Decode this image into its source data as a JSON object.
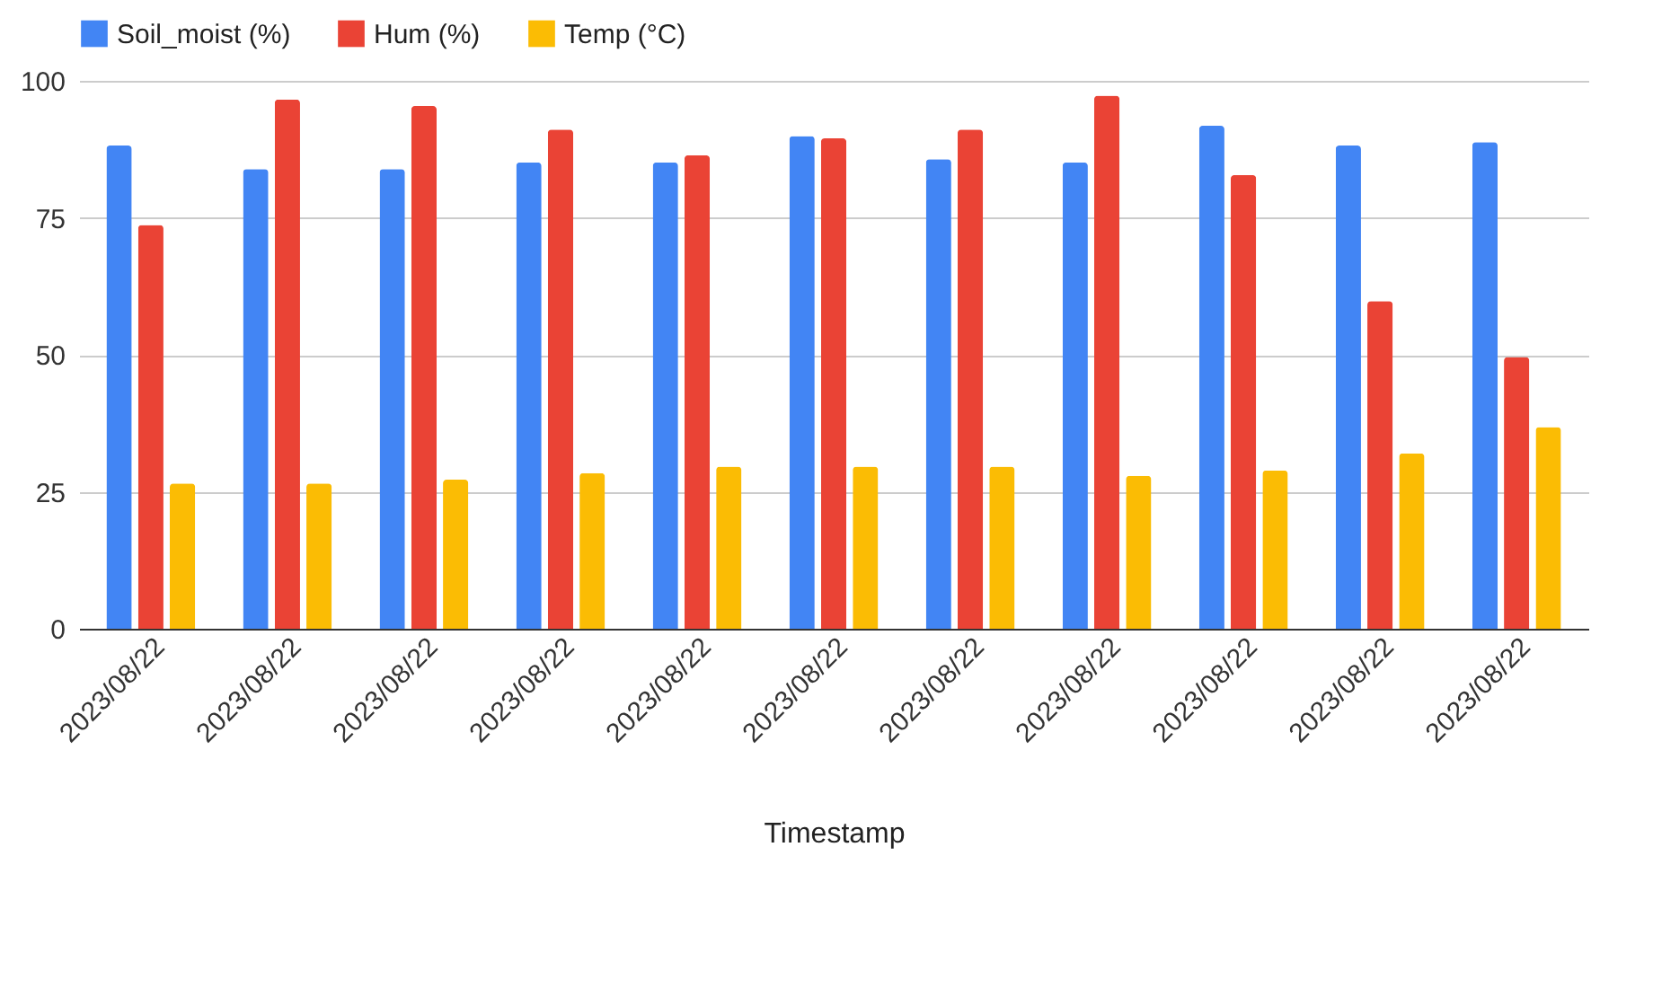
{
  "chart_data": {
    "type": "bar",
    "xlabel": "Timestamp",
    "categories": [
      "2023/08/22",
      "2023/08/22",
      "2023/08/22",
      "2023/08/22",
      "2023/08/22",
      "2023/08/22",
      "2023/08/22",
      "2023/08/22",
      "2023/08/22",
      "2023/08/22",
      "2023/08/22"
    ],
    "series": [
      {
        "name": "Soil_moist (%)",
        "color": "#4285f4",
        "values": [
          88.2,
          83.9,
          83.9,
          85.1,
          85.1,
          89.9,
          85.7,
          85.1,
          91.8,
          88.2,
          88.8
        ]
      },
      {
        "name": "Hum (%)",
        "color": "#ea4335",
        "values": [
          73.7,
          96.6,
          95.4,
          91.1,
          86.4,
          89.5,
          91.1,
          97.3,
          82.8,
          59.8,
          49.6
        ]
      },
      {
        "name": "Temp (°C)",
        "color": "#fbbc04",
        "values": [
          26.5,
          26.5,
          27.2,
          28.4,
          29.6,
          29.6,
          29.6,
          27.9,
          28.9,
          32.0,
          36.8
        ]
      }
    ],
    "ylim": [
      0,
      100
    ],
    "yticks": [
      0,
      25,
      50,
      75,
      100
    ],
    "grid": "y",
    "legend": "top"
  }
}
